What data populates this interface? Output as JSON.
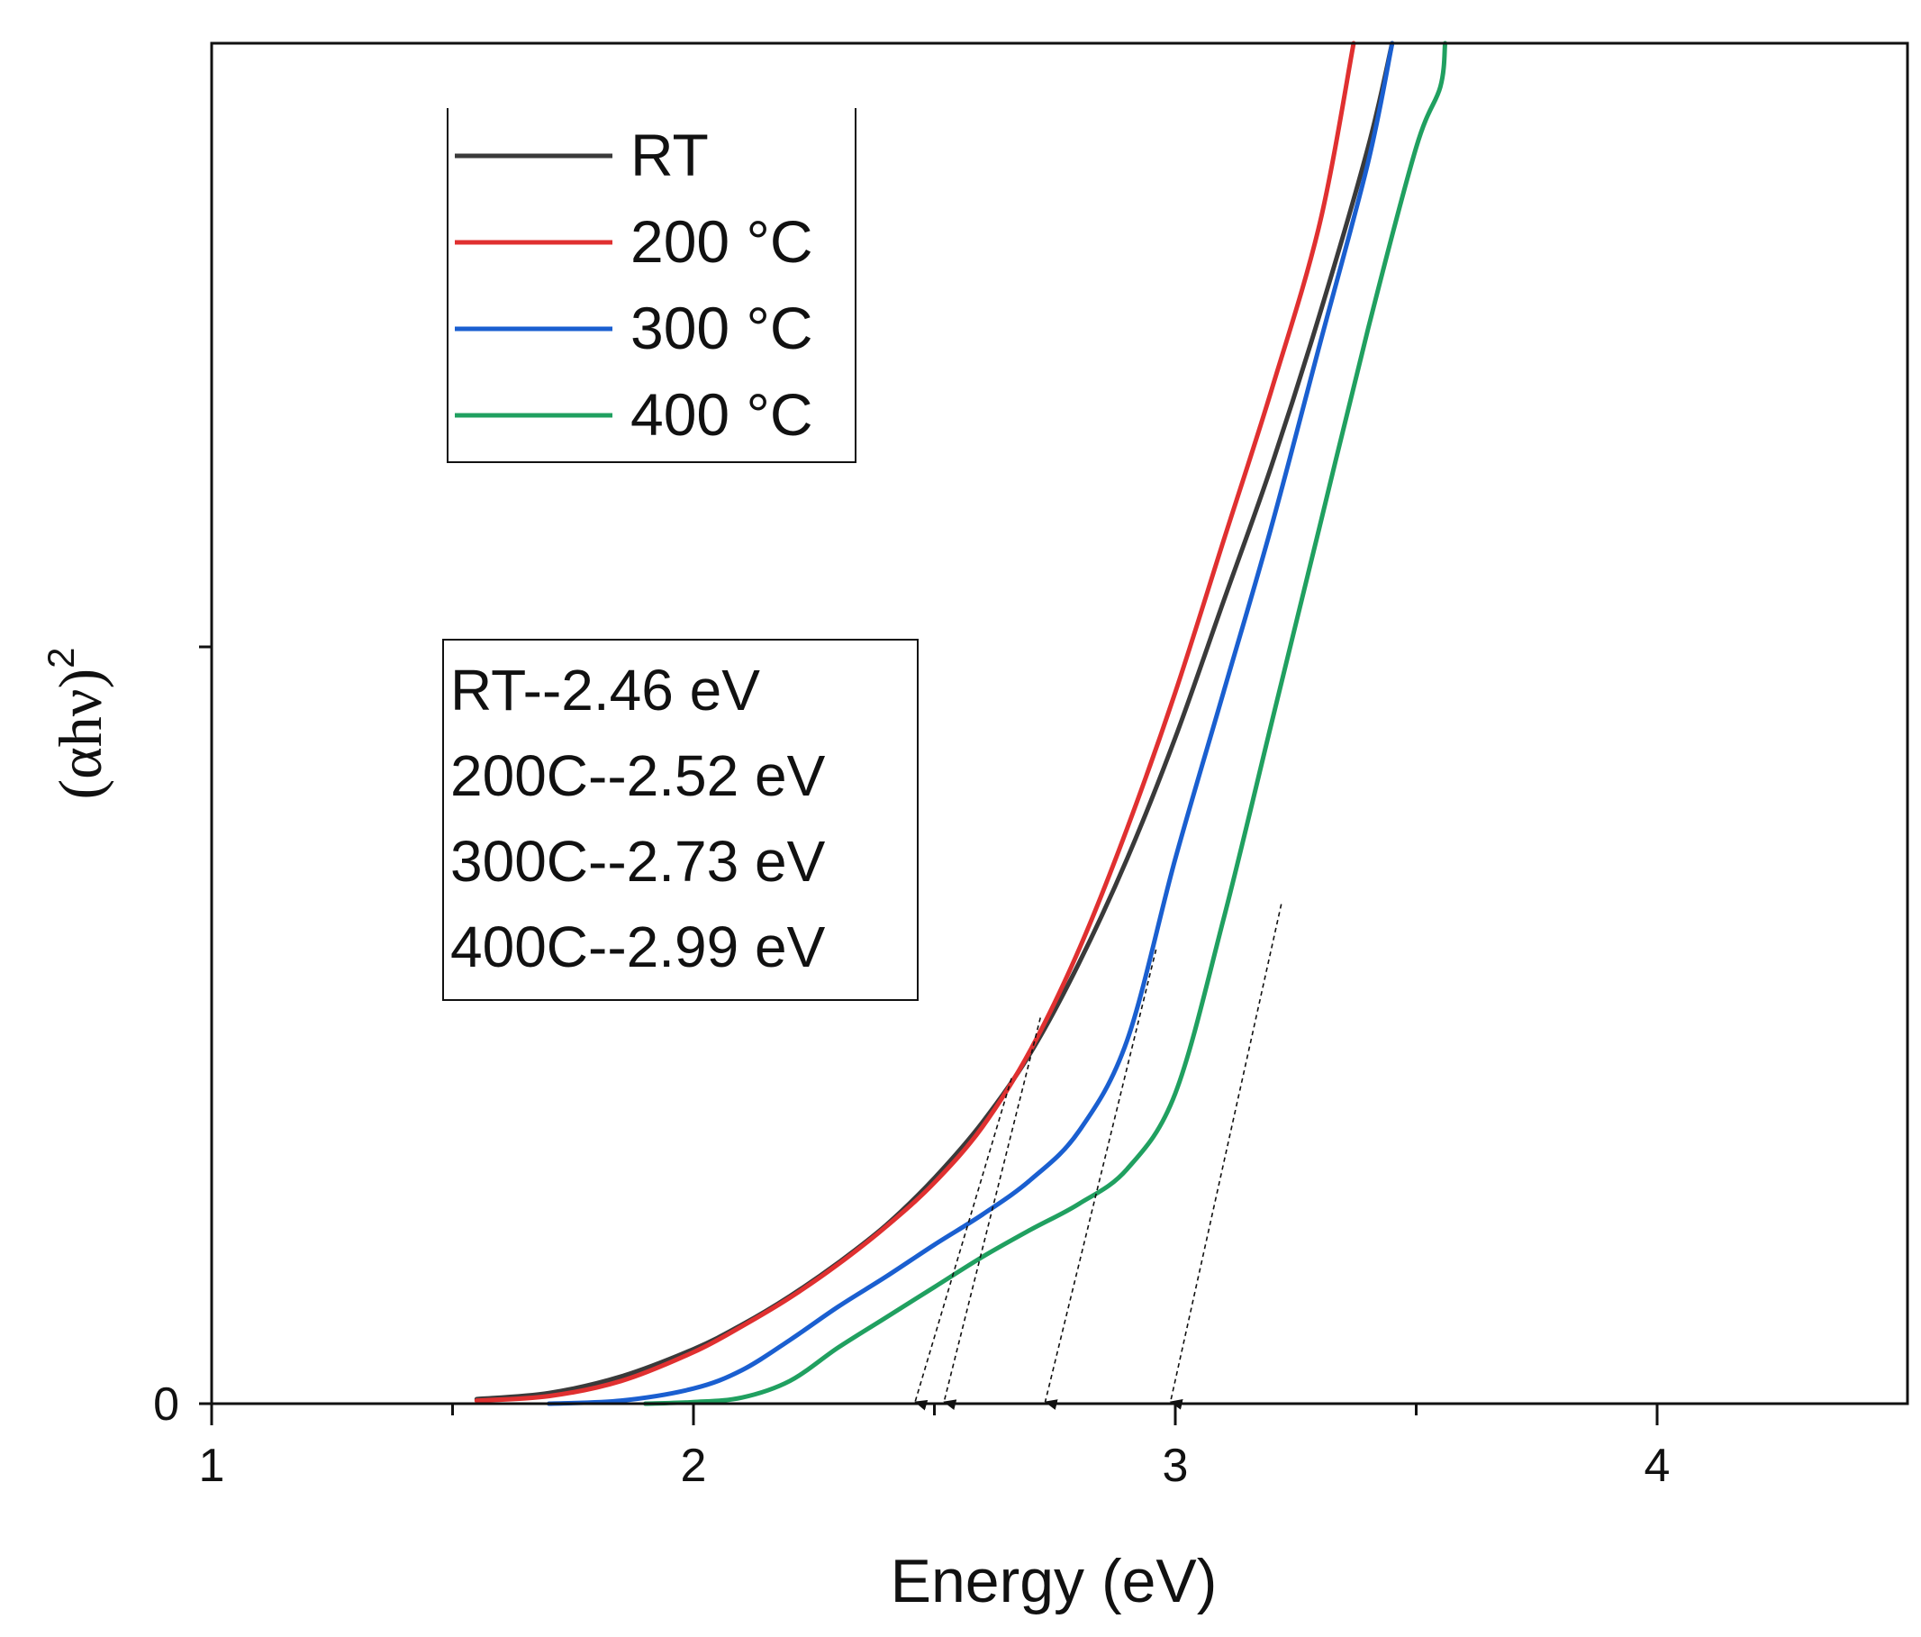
{
  "chart_data": {
    "type": "line",
    "title": "",
    "xlabel": "Energy (eV)",
    "ylabel": {
      "base": "(αhν)",
      "superscript": "2"
    },
    "xlim": [
      1,
      4.5
    ],
    "ylim": [
      0,
      0.9
    ],
    "x_ticks": [
      {
        "value": 1,
        "label": "1"
      },
      {
        "value": 2,
        "label": "2"
      },
      {
        "value": 3,
        "label": "3"
      },
      {
        "value": 4,
        "label": "4"
      }
    ],
    "x_minor_ticks": [
      1.5,
      2.5,
      3.5
    ],
    "y_ticks": [
      {
        "value": 0,
        "label": "0"
      },
      {
        "value": 0.5,
        "label": ""
      }
    ],
    "grid": false,
    "legend_position": "top-left",
    "series": [
      {
        "name": "RT",
        "color": "#3a3a3a",
        "x": [
          1.55,
          1.7,
          1.85,
          2.0,
          2.1,
          2.2,
          2.3,
          2.4,
          2.5,
          2.6,
          2.7,
          2.8,
          2.9,
          3.0,
          3.1,
          3.2,
          3.3,
          3.4,
          3.45
        ],
        "y": [
          0.003,
          0.007,
          0.018,
          0.036,
          0.052,
          0.071,
          0.093,
          0.118,
          0.149,
          0.186,
          0.232,
          0.291,
          0.36,
          0.44,
          0.53,
          0.62,
          0.72,
          0.83,
          0.9
        ]
      },
      {
        "name": "200 °C",
        "color": "#e03030",
        "x": [
          1.55,
          1.7,
          1.85,
          2.0,
          2.1,
          2.2,
          2.3,
          2.4,
          2.5,
          2.6,
          2.7,
          2.8,
          2.9,
          3.0,
          3.1,
          3.2,
          3.3,
          3.37
        ],
        "y": [
          0.002,
          0.005,
          0.015,
          0.034,
          0.051,
          0.07,
          0.092,
          0.117,
          0.146,
          0.183,
          0.234,
          0.3,
          0.38,
          0.47,
          0.57,
          0.67,
          0.78,
          0.9
        ]
      },
      {
        "name": "300 °C",
        "color": "#1a5fd0",
        "x": [
          1.7,
          1.85,
          2.0,
          2.1,
          2.2,
          2.3,
          2.4,
          2.5,
          2.6,
          2.7,
          2.8,
          2.9,
          3.0,
          3.1,
          3.2,
          3.3,
          3.4,
          3.45
        ],
        "y": [
          0.0,
          0.002,
          0.01,
          0.022,
          0.042,
          0.064,
          0.084,
          0.105,
          0.125,
          0.148,
          0.18,
          0.24,
          0.36,
          0.47,
          0.58,
          0.7,
          0.82,
          0.9
        ]
      },
      {
        "name": "400 °C",
        "color": "#20a060",
        "x": [
          1.9,
          2.0,
          2.1,
          2.2,
          2.3,
          2.4,
          2.5,
          2.6,
          2.7,
          2.8,
          2.9,
          3.0,
          3.1,
          3.2,
          3.3,
          3.4,
          3.5,
          3.55,
          3.56
        ],
        "y": [
          0.0,
          0.001,
          0.004,
          0.015,
          0.037,
          0.057,
          0.077,
          0.097,
          0.115,
          0.132,
          0.155,
          0.205,
          0.32,
          0.45,
          0.58,
          0.71,
          0.83,
          0.87,
          0.9
        ]
      }
    ],
    "legend": [
      {
        "label": "RT",
        "color": "#3a3a3a"
      },
      {
        "label": "200 °C",
        "color": "#e03030"
      },
      {
        "label": "300 °C",
        "color": "#1a5fd0"
      },
      {
        "label": "400 °C",
        "color": "#20a060"
      }
    ],
    "annotations": {
      "lines": [
        "RT--2.46 eV",
        "200C--2.52 eV",
        "300C--2.73 eV",
        "400C--2.99 eV"
      ],
      "arrows": [
        {
          "from": [
            2.66,
            0.215
          ],
          "to": [
            2.46,
            0
          ]
        },
        {
          "from": [
            2.72,
            0.255
          ],
          "to": [
            2.52,
            0
          ]
        },
        {
          "from": [
            2.96,
            0.3
          ],
          "to": [
            2.73,
            0
          ]
        },
        {
          "from": [
            3.22,
            0.33
          ],
          "to": [
            2.99,
            0
          ]
        }
      ]
    }
  }
}
